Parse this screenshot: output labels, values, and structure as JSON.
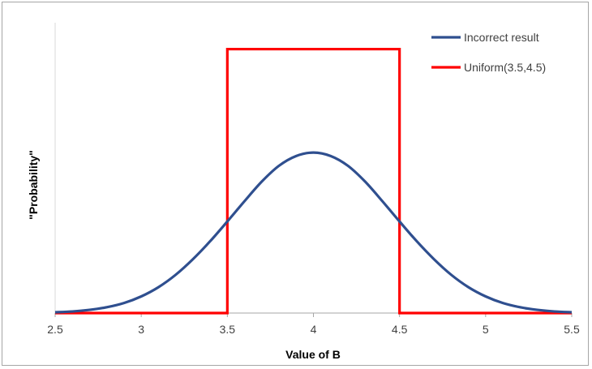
{
  "chart_data": {
    "type": "line",
    "title": "",
    "xlabel": "Value of B",
    "ylabel": "\"Probability\"",
    "xlim": [
      2.5,
      5.5
    ],
    "ylim": [
      0,
      1.1
    ],
    "x_ticks": [
      "2.5",
      "3",
      "3.5",
      "4",
      "4.5",
      "5",
      "5.5"
    ],
    "grid": false,
    "legend_position": "top-right",
    "series": [
      {
        "name": "Incorrect result",
        "color": "#2f4f8f",
        "points": [
          [
            2.5,
            0.003
          ],
          [
            2.6,
            0.006
          ],
          [
            2.7,
            0.012
          ],
          [
            2.8,
            0.022
          ],
          [
            2.9,
            0.038
          ],
          [
            3.0,
            0.063
          ],
          [
            3.1,
            0.098
          ],
          [
            3.2,
            0.145
          ],
          [
            3.3,
            0.204
          ],
          [
            3.4,
            0.272
          ],
          [
            3.5,
            0.347
          ],
          [
            3.6,
            0.424
          ],
          [
            3.7,
            0.498
          ],
          [
            3.8,
            0.558
          ],
          [
            3.9,
            0.595
          ],
          [
            4.0,
            0.608
          ],
          [
            4.1,
            0.595
          ],
          [
            4.2,
            0.558
          ],
          [
            4.3,
            0.498
          ],
          [
            4.4,
            0.424
          ],
          [
            4.5,
            0.347
          ],
          [
            4.6,
            0.272
          ],
          [
            4.7,
            0.204
          ],
          [
            4.8,
            0.145
          ],
          [
            4.9,
            0.098
          ],
          [
            5.0,
            0.063
          ],
          [
            5.1,
            0.038
          ],
          [
            5.2,
            0.022
          ],
          [
            5.3,
            0.012
          ],
          [
            5.4,
            0.006
          ],
          [
            5.5,
            0.003
          ]
        ]
      },
      {
        "name": "Uniform(3.5,4.5)",
        "color": "#ff0000",
        "points": [
          [
            2.5,
            0
          ],
          [
            3.5,
            0
          ],
          [
            3.5,
            1.0
          ],
          [
            4.5,
            1.0
          ],
          [
            4.5,
            0
          ],
          [
            5.5,
            0
          ]
        ]
      }
    ]
  }
}
